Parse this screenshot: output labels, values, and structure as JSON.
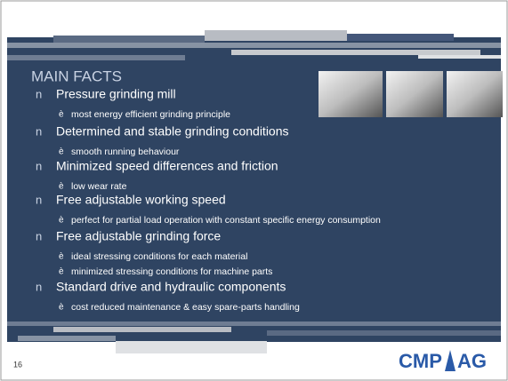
{
  "title": "MAIN FACTS",
  "bullet_marker": "n",
  "sub_marker": "è",
  "items": [
    {
      "text": "Pressure grinding mill",
      "subs": [
        "most energy efficient grinding principle"
      ]
    },
    {
      "text": "Determined and stable grinding conditions",
      "subs": [
        "smooth running behaviour"
      ]
    },
    {
      "text": "Minimized speed differences and friction",
      "subs": [
        "low wear rate"
      ]
    },
    {
      "text": "Free adjustable working speed",
      "subs": [
        "perfect for partial load operation with constant specific energy consumption"
      ]
    },
    {
      "text": "Free adjustable grinding force",
      "subs": [
        "ideal stressing conditions for each material",
        "minimized stressing conditions for machine parts"
      ]
    },
    {
      "text": "Standard drive and hydraulic components",
      "subs": [
        "cost reduced maintenance & easy spare-parts handling"
      ]
    }
  ],
  "page_number": "16",
  "logo": {
    "left": "CMP",
    "right": "AG"
  }
}
